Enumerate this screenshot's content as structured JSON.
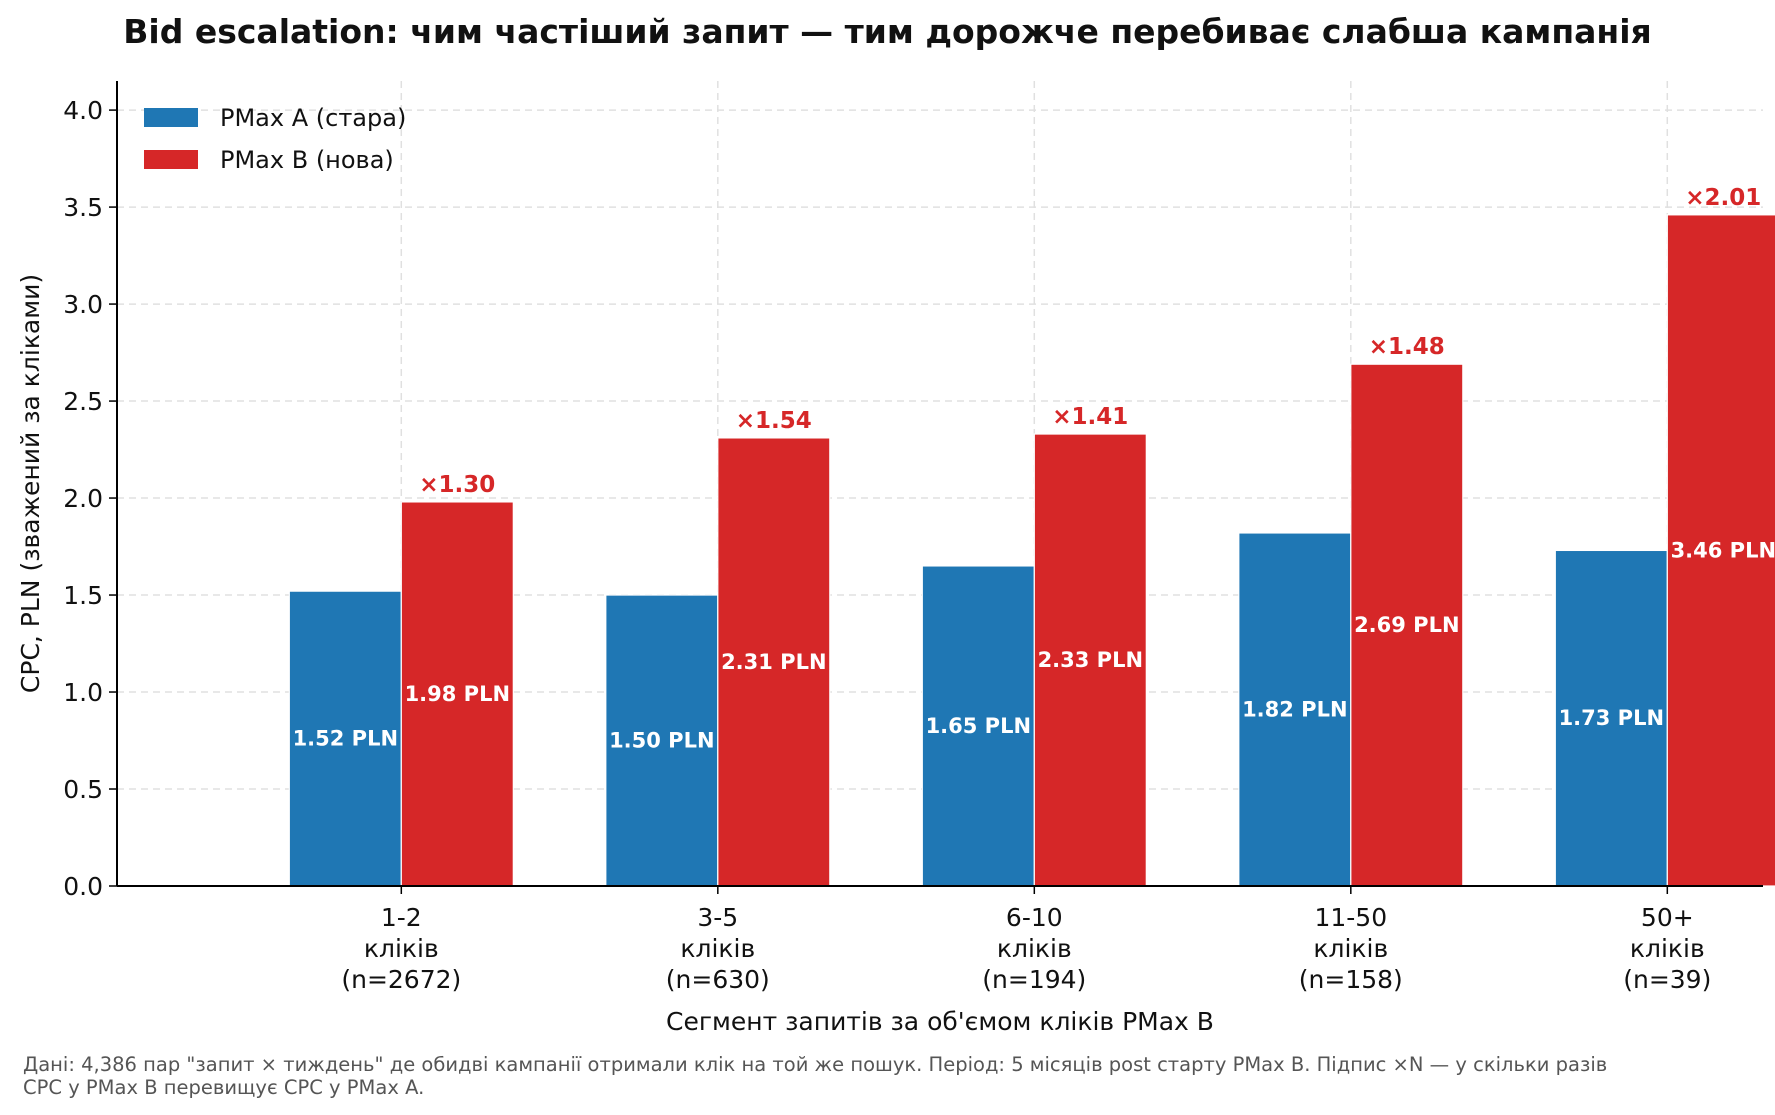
{
  "title": "Bid escalation: чим частіший запит — тим дорожче перебиває слабша кампанія",
  "footnote": {
    "line1": "Дані: 4,386 пар \"запит × тиждень\" де обидві кампанії отримали клік на той же пошук.  Період: 5 місяців post старту PMax B.  Підпис ×N — у скільки разів",
    "line2": "CPC у PMax B перевищує CPC у PMax A."
  },
  "colors": {
    "series_a": "#1f77b4",
    "series_b": "#d62728",
    "grid": "#e0e0e0",
    "axis": "#000000"
  },
  "chart_data": {
    "type": "bar",
    "title": "Bid escalation: чим частіший запит — тим дорожче перебиває слабша кампанія",
    "xlabel": "Сегмент запитів за об'ємом кліків PMax B",
    "ylabel": "CPC, PLN (зважений за кліками)",
    "ylim": [
      0,
      4.15
    ],
    "yticks": [
      0.0,
      0.5,
      1.0,
      1.5,
      2.0,
      2.5,
      3.0,
      3.5,
      4.0
    ],
    "ytick_labels": [
      "0.0",
      "0.5",
      "1.0",
      "1.5",
      "2.0",
      "2.5",
      "3.0",
      "3.5",
      "4.0"
    ],
    "grid": true,
    "legend_position": "top-left",
    "categories": [
      [
        "1-2",
        "кліків",
        "(n=2672)"
      ],
      [
        "3-5",
        "кліків",
        "(n=630)"
      ],
      [
        "6-10",
        "кліків",
        "(n=194)"
      ],
      [
        "11-50",
        "кліків",
        "(n=158)"
      ],
      [
        "50+",
        "кліків",
        "(n=39)"
      ]
    ],
    "series": [
      {
        "name": "PMax A (стара)",
        "color": "#1f77b4",
        "values": [
          1.52,
          1.5,
          1.65,
          1.82,
          1.73
        ],
        "labels": [
          "1.52 PLN",
          "1.50 PLN",
          "1.65 PLN",
          "1.82 PLN",
          "1.73 PLN"
        ]
      },
      {
        "name": "PMax B (нова)",
        "color": "#d62728",
        "values": [
          1.98,
          2.31,
          2.33,
          2.69,
          3.46
        ],
        "labels": [
          "1.98 PLN",
          "2.31 PLN",
          "2.33 PLN",
          "2.69 PLN",
          "3.46 PLN"
        ]
      }
    ],
    "ratio_labels": [
      "×1.30",
      "×1.54",
      "×1.41",
      "×1.48",
      "×2.01"
    ]
  }
}
